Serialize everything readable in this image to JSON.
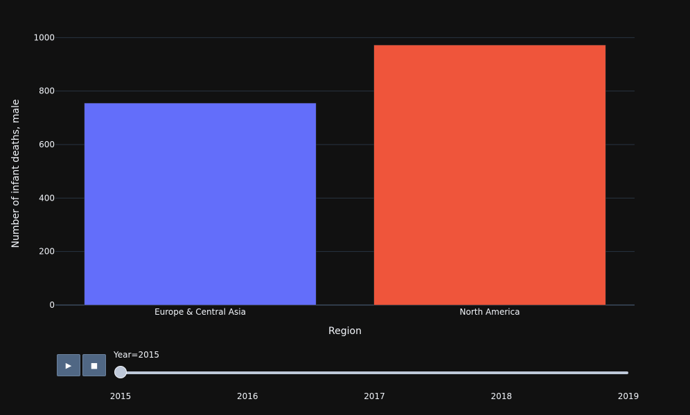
{
  "chart_data": {
    "type": "bar",
    "categories": [
      "Europe & Central Asia",
      "North America"
    ],
    "values": [
      755,
      972
    ],
    "colors": [
      "#636efa",
      "#ef553b"
    ],
    "xlabel": "Region",
    "ylabel": "Number of infant deaths, male",
    "ylim": [
      0,
      1050
    ],
    "yticks": [
      0,
      200,
      400,
      600,
      800,
      1000
    ],
    "grid": true,
    "legend": "none"
  },
  "animation": {
    "play_icon": "play-icon",
    "play_glyph": "▶",
    "stop_icon": "stop-icon",
    "stop_glyph": "■",
    "current_label": "Year=2015",
    "steps": [
      "2015",
      "2016",
      "2017",
      "2018",
      "2019"
    ],
    "active_step": 0
  },
  "theme": {
    "background": "#111111",
    "grid": "#283442",
    "text": "#f2f5fa"
  }
}
